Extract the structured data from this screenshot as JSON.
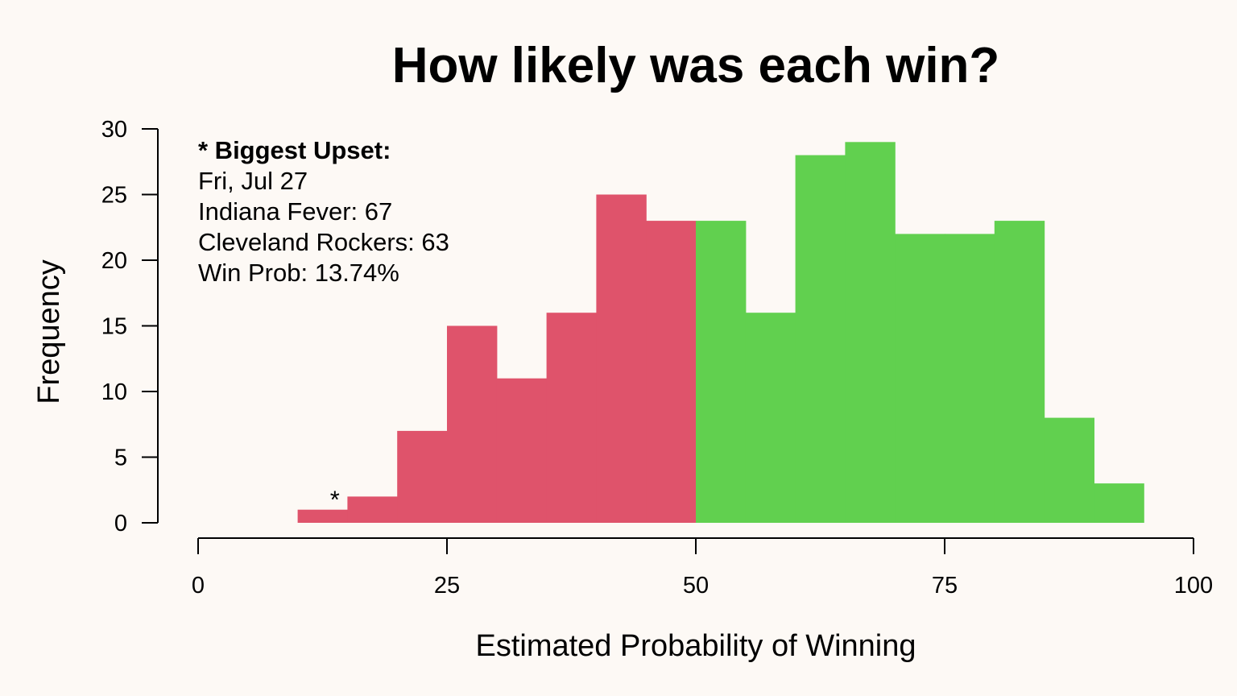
{
  "chart_data": {
    "type": "bar",
    "title": "How likely was each win?",
    "xlabel": "Estimated Probability of Winning",
    "ylabel": "Frequency",
    "xlim": [
      0,
      100
    ],
    "ylim": [
      0,
      30
    ],
    "x_ticks": [
      "0",
      "25",
      "50",
      "75",
      "100"
    ],
    "x_tick_values": [
      0,
      25,
      50,
      75,
      100
    ],
    "y_ticks": [
      "0",
      "5",
      "10",
      "15",
      "20",
      "25",
      "30"
    ],
    "y_tick_values": [
      0,
      5,
      10,
      15,
      20,
      25,
      30
    ],
    "bin_width": 5,
    "bins": [
      {
        "start": 10,
        "end": 15,
        "count": 1
      },
      {
        "start": 15,
        "end": 20,
        "count": 2
      },
      {
        "start": 20,
        "end": 25,
        "count": 7
      },
      {
        "start": 25,
        "end": 30,
        "count": 15
      },
      {
        "start": 30,
        "end": 35,
        "count": 11
      },
      {
        "start": 35,
        "end": 40,
        "count": 16
      },
      {
        "start": 40,
        "end": 45,
        "count": 25
      },
      {
        "start": 45,
        "end": 50,
        "count": 23
      },
      {
        "start": 50,
        "end": 55,
        "count": 23
      },
      {
        "start": 55,
        "end": 60,
        "count": 16
      },
      {
        "start": 60,
        "end": 65,
        "count": 28
      },
      {
        "start": 65,
        "end": 70,
        "count": 29
      },
      {
        "start": 70,
        "end": 75,
        "count": 22
      },
      {
        "start": 75,
        "end": 80,
        "count": 22
      },
      {
        "start": 80,
        "end": 85,
        "count": 23
      },
      {
        "start": 85,
        "end": 90,
        "count": 8
      },
      {
        "start": 90,
        "end": 95,
        "count": 3
      }
    ],
    "split_at": 50,
    "colors": {
      "below_split": "#df536b",
      "above_split": "#61d04f"
    },
    "marker": {
      "symbol": "*",
      "x": 13.74
    },
    "annotation": {
      "heading": "* Biggest Upset:",
      "lines": [
        "Fri, Jul 27",
        "Indiana Fever: 67",
        "Cleveland Rockers: 63",
        "Win Prob: 13.74%"
      ]
    }
  }
}
